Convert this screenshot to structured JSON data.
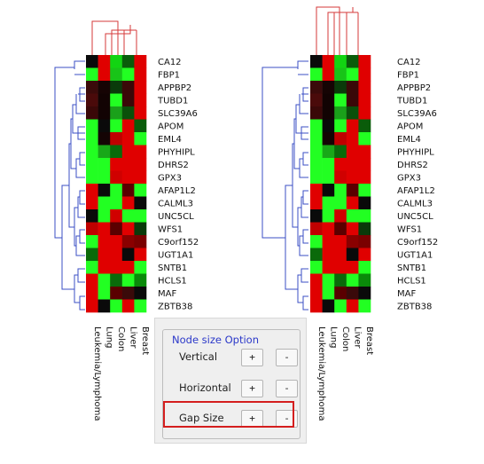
{
  "heatmaps": {
    "genes": [
      "CA12",
      "FBP1",
      "APPBP2",
      "TUBD1",
      "SLC39A6",
      "APOM",
      "EML4",
      "PHYHIPL",
      "DHRS2",
      "GPX3",
      "AFAP1L2",
      "CALML3",
      "UNC5CL",
      "WFS1",
      "C9orf152",
      "UGT1A1",
      "SNTB1",
      "HCLS1",
      "MAF",
      "ZBTB38"
    ],
    "left": {
      "tissues": [
        "Leukemia/Lymphoma",
        "Lung",
        "Colon",
        "Liver",
        "Breast"
      ],
      "cells": [
        [
          "#0a0a0a",
          "#e00000",
          "#12d412",
          "#0a5c0a",
          "#e00000"
        ],
        [
          "#22ff22",
          "#e00000",
          "#18c418",
          "#22ff22",
          "#e00000"
        ],
        [
          "#3a0a0a",
          "#160404",
          "#0a3a0a",
          "#3a0808",
          "#e00000"
        ],
        [
          "#4a0a0a",
          "#120303",
          "#22ff22",
          "#3a0808",
          "#e00000"
        ],
        [
          "#3a0808",
          "#120303",
          "#1aa01a",
          "#0a500a",
          "#e00000"
        ],
        [
          "#22ff22",
          "#0a0a0a",
          "#22ff22",
          "#e00000",
          "#0a5c0a"
        ],
        [
          "#22ff22",
          "#140404",
          "#c00000",
          "#e00000",
          "#22ff22"
        ],
        [
          "#22ff22",
          "#18a818",
          "#0a6a0a",
          "#e00000",
          "#e00000"
        ],
        [
          "#22ff22",
          "#22ff22",
          "#e00000",
          "#e00000",
          "#e00000"
        ],
        [
          "#22ff22",
          "#22ff22",
          "#d00000",
          "#e00000",
          "#e00000"
        ],
        [
          "#e00000",
          "#0a0a0a",
          "#22ff22",
          "#5a0000",
          "#22ff22"
        ],
        [
          "#e00000",
          "#22ff22",
          "#22ff22",
          "#e00000",
          "#0a0a0a"
        ],
        [
          "#0a0a0a",
          "#22ff22",
          "#d00000",
          "#22ff22",
          "#22ff22"
        ],
        [
          "#c00000",
          "#e00000",
          "#5a0000",
          "#e00000",
          "#0a3a0a"
        ],
        [
          "#22ff22",
          "#e00000",
          "#e00000",
          "#8a0000",
          "#7a0000"
        ],
        [
          "#0a6a0a",
          "#e00000",
          "#e00000",
          "#0a0a0a",
          "#e00000"
        ],
        [
          "#22ff22",
          "#e00000",
          "#e00000",
          "#e00000",
          "#22ff22"
        ],
        [
          "#e00000",
          "#22ff22",
          "#0a6a0a",
          "#22ff22",
          "#0a8a0a"
        ],
        [
          "#e00000",
          "#22ff22",
          "#5a0000",
          "#3a0a0a",
          "#0a0a0a"
        ],
        [
          "#e00000",
          "#0a0a0a",
          "#22ff22",
          "#e00000",
          "#22ff22"
        ]
      ]
    },
    "right": {
      "tissues": [
        "Leukemia/Lymphoma",
        "Lung",
        "Colon",
        "Liver",
        "Breast"
      ],
      "cells": [
        [
          "#0a0a0a",
          "#e00000",
          "#12d412",
          "#0a5c0a",
          "#e00000"
        ],
        [
          "#22ff22",
          "#e00000",
          "#18c418",
          "#22ff22",
          "#e00000"
        ],
        [
          "#3a0a0a",
          "#160404",
          "#0a3a0a",
          "#3a0808",
          "#e00000"
        ],
        [
          "#4a0a0a",
          "#120303",
          "#22ff22",
          "#3a0808",
          "#e00000"
        ],
        [
          "#3a0808",
          "#120303",
          "#1aa01a",
          "#0a500a",
          "#e00000"
        ],
        [
          "#22ff22",
          "#0a0a0a",
          "#22ff22",
          "#e00000",
          "#0a5c0a"
        ],
        [
          "#22ff22",
          "#140404",
          "#c00000",
          "#e00000",
          "#22ff22"
        ],
        [
          "#22ff22",
          "#18a818",
          "#0a6a0a",
          "#e00000",
          "#e00000"
        ],
        [
          "#22ff22",
          "#22ff22",
          "#e00000",
          "#e00000",
          "#e00000"
        ],
        [
          "#22ff22",
          "#22ff22",
          "#d00000",
          "#e00000",
          "#e00000"
        ],
        [
          "#e00000",
          "#0a0a0a",
          "#22ff22",
          "#5a0000",
          "#22ff22"
        ],
        [
          "#e00000",
          "#22ff22",
          "#22ff22",
          "#e00000",
          "#0a0a0a"
        ],
        [
          "#0a0a0a",
          "#22ff22",
          "#d00000",
          "#22ff22",
          "#22ff22"
        ],
        [
          "#c00000",
          "#e00000",
          "#5a0000",
          "#e00000",
          "#0a3a0a"
        ],
        [
          "#22ff22",
          "#e00000",
          "#e00000",
          "#8a0000",
          "#7a0000"
        ],
        [
          "#0a6a0a",
          "#e00000",
          "#e00000",
          "#0a0a0a",
          "#e00000"
        ],
        [
          "#22ff22",
          "#e00000",
          "#e00000",
          "#e00000",
          "#22ff22"
        ],
        [
          "#e00000",
          "#22ff22",
          "#0a6a0a",
          "#22ff22",
          "#0a8a0a"
        ],
        [
          "#e00000",
          "#22ff22",
          "#5a0000",
          "#3a0a0a",
          "#0a0a0a"
        ],
        [
          "#e00000",
          "#0a0a0a",
          "#22ff22",
          "#e00000",
          "#22ff22"
        ]
      ]
    },
    "colors": {
      "row_dendrogram": "#3b4fc4",
      "column_dendrogram": "#d63a3a",
      "gap_highlight": "#d41e1e"
    }
  },
  "panel": {
    "title": "Node size Option",
    "options": [
      {
        "label": "Vertical",
        "plus": "+",
        "minus": "-"
      },
      {
        "label": "Horizontal",
        "plus": "+",
        "minus": "-"
      },
      {
        "label": "Gap Size",
        "plus": "+",
        "minus": "-"
      }
    ]
  }
}
